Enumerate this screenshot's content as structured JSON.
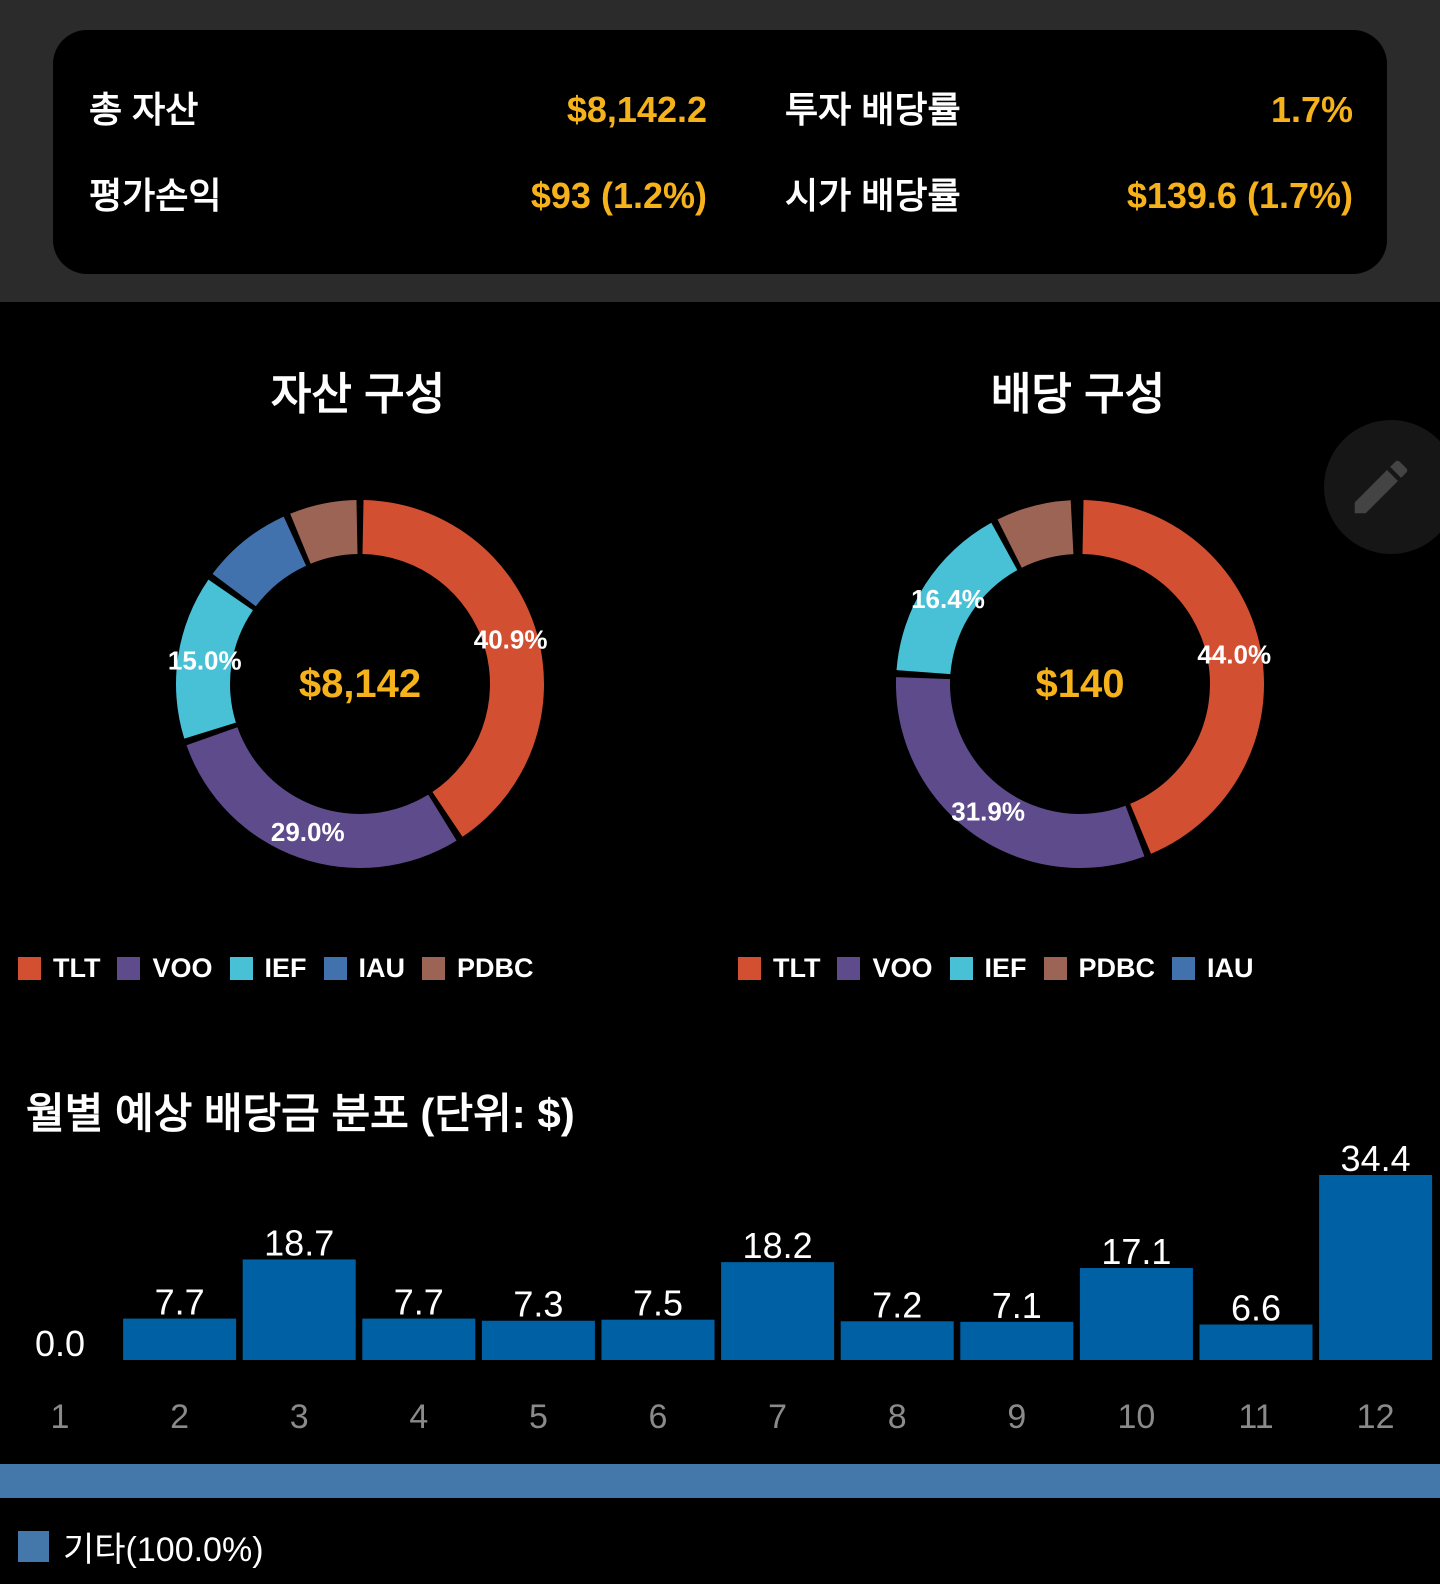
{
  "summary": {
    "total_assets_label": "총 자산",
    "total_assets_value": "$8,142.2",
    "invest_yield_label": "투자 배당률",
    "invest_yield_value": "1.7%",
    "pnl_label": "평가손익",
    "pnl_value": "$93 (1.2%)",
    "market_yield_label": "시가 배당률",
    "market_yield_value": "$139.6 (1.7%)"
  },
  "asset_pie": {
    "title": "자산 구성",
    "center": "$8,142",
    "legend": [
      "TLT",
      "VOO",
      "IEF",
      "IAU",
      "PDBC"
    ]
  },
  "dividend_pie": {
    "title": "배당 구성",
    "center": "$140",
    "legend": [
      "TLT",
      "VOO",
      "IEF",
      "PDBC",
      "IAU"
    ]
  },
  "colors": {
    "TLT": "#d34f32",
    "VOO": "#5e4b8c",
    "IEF": "#48c1d6",
    "IAU": "#4272ad",
    "PDBC": "#9c6455",
    "bar": "#0060a4",
    "accent": "#f6b21a",
    "other": "#4477aa"
  },
  "monthly": {
    "title": "월별 예상 배당금 분포 (단위: $)"
  },
  "bottom_legend": {
    "label": "기타(100.0%)"
  },
  "edit_button_icon": "pencil-icon",
  "chart_data": [
    {
      "type": "pie",
      "title": "자산 구성",
      "categories": [
        "TLT",
        "VOO",
        "IEF",
        "IAU",
        "PDBC"
      ],
      "values": [
        40.9,
        29.0,
        15.0,
        8.6,
        6.5
      ],
      "labels": [
        "40.9%",
        "29.0%",
        "15.0%",
        "",
        ""
      ],
      "legend": "bottom"
    },
    {
      "type": "pie",
      "title": "배당 구성",
      "categories": [
        "TLT",
        "VOO",
        "IEF",
        "PDBC",
        "IAU"
      ],
      "values": [
        44.0,
        31.9,
        16.4,
        7.2,
        0.5
      ],
      "labels": [
        "44.0%",
        "31.9%",
        "16.4%",
        "",
        ""
      ],
      "legend": "bottom"
    },
    {
      "type": "bar",
      "title": "월별 예상 배당금 분포 (단위: $)",
      "categories": [
        "1",
        "2",
        "3",
        "4",
        "5",
        "6",
        "7",
        "8",
        "9",
        "10",
        "11",
        "12"
      ],
      "values": [
        0.0,
        7.7,
        18.7,
        7.7,
        7.3,
        7.5,
        18.2,
        7.2,
        7.1,
        17.1,
        6.6,
        34.4
      ],
      "value_labels": [
        "0.0",
        "7.7",
        "18.7",
        "7.7",
        "7.3",
        "7.5",
        "18.2",
        "7.2",
        "7.1",
        "17.1",
        "6.6",
        "34.4"
      ]
    }
  ]
}
